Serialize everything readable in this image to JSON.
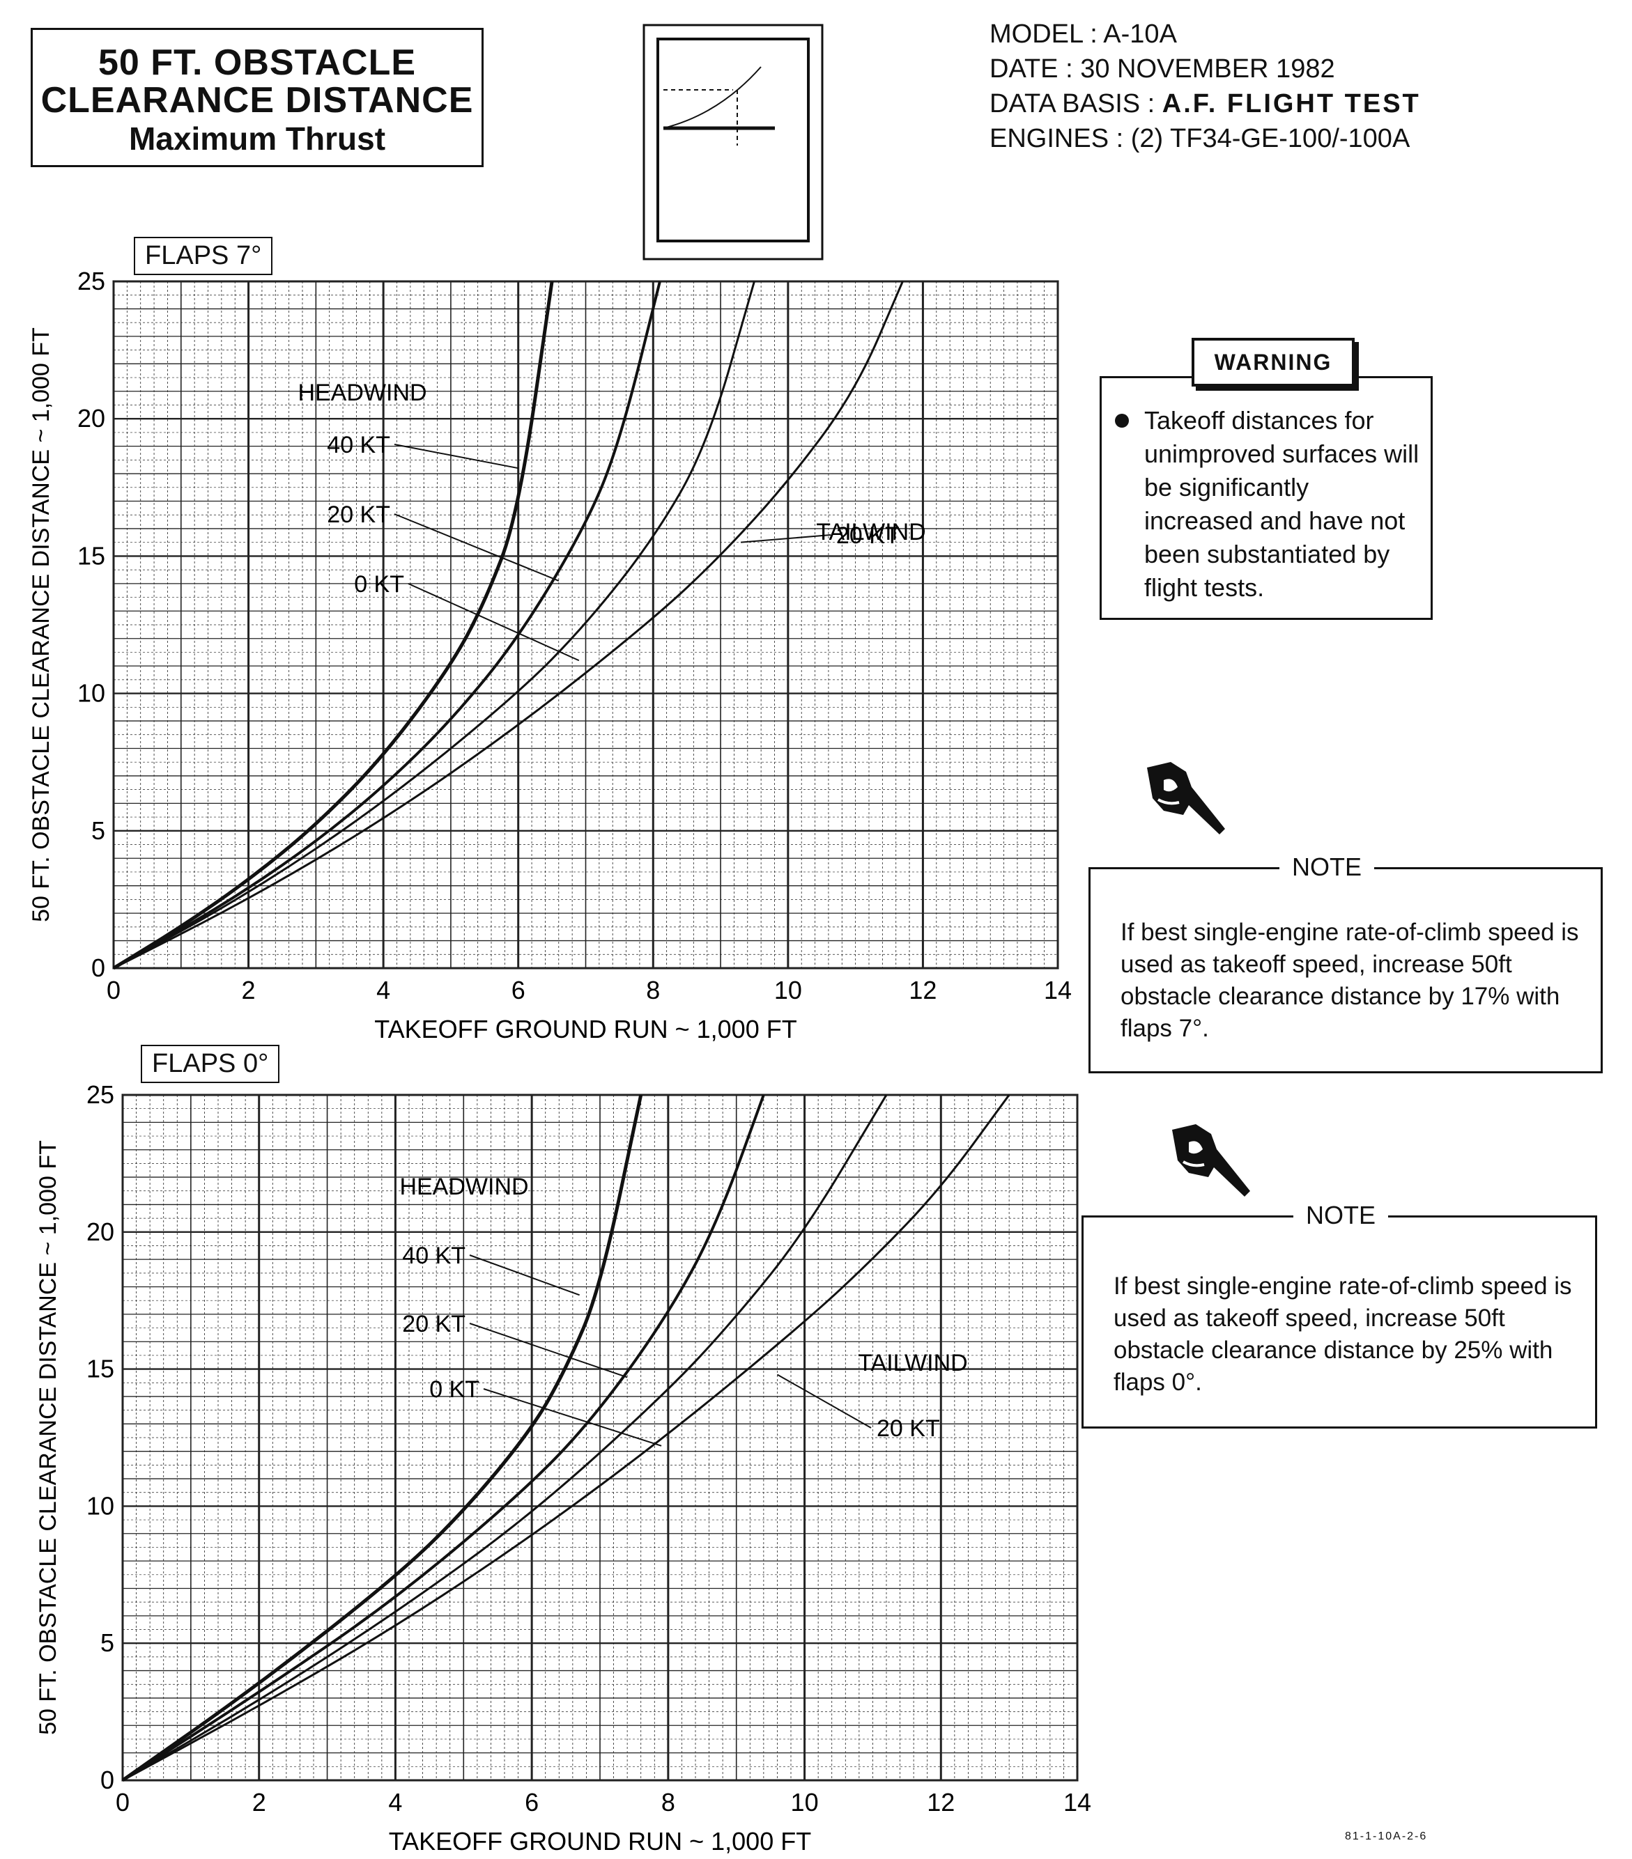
{
  "header": {
    "title_line1": "50 FT. OBSTACLE",
    "title_line2": "CLEARANCE DISTANCE",
    "title_line3": "Maximum Thrust",
    "model": "MODEL : A-10A",
    "date": "DATE : 30 NOVEMBER 1982",
    "data_basis_label": "DATA BASIS : ",
    "data_basis_value": "A.F. FLIGHT TEST",
    "engines": "ENGINES : (2) TF34-GE-100/-100A"
  },
  "warning": {
    "badge": "WARNING",
    "text": "Takeoff distances for unimproved surfaces will be significantly increased and have not been substantiated by flight tests."
  },
  "notes": [
    {
      "label": "NOTE",
      "text": "If best single-engine rate-of-climb speed is used as takeoff speed, increase 50ft obstacle clearance distance by 17% with flaps 7°."
    },
    {
      "label": "NOTE",
      "text": "If best single-engine rate-of-climb speed is used as takeoff speed, increase 50ft obstacle clearance distance by 25% with flaps 0°."
    }
  ],
  "figure_ref": "81-1-10A-2-6",
  "chart_data": [
    {
      "type": "line",
      "title": "FLAPS 7°",
      "xlabel": "TAKEOFF GROUND RUN ~ 1,000 FT",
      "ylabel": "50 FT. OBSTACLE CLEARANCE DISTANCE ~ 1,000 FT",
      "xlim": [
        0,
        14
      ],
      "ylim": [
        0,
        25
      ],
      "xticks": [
        0,
        2,
        4,
        6,
        8,
        10,
        12,
        14
      ],
      "yticks": [
        0,
        5,
        10,
        15,
        20,
        25
      ],
      "grid": true,
      "annotations": {
        "headwind": "HEADWIND",
        "tailwind": "TAILWIND"
      },
      "series": [
        {
          "name": "40 KT",
          "x": [
            0,
            1,
            2,
            3,
            4,
            5,
            5.5,
            6,
            6.5
          ],
          "y": [
            0,
            1.5,
            3.2,
            5.2,
            7.7,
            11.0,
            13.3,
            16.5,
            25
          ]
        },
        {
          "name": "20 KT",
          "x": [
            0,
            1,
            2,
            3,
            4,
            5,
            6,
            7,
            7.5,
            8.1
          ],
          "y": [
            0,
            1.4,
            2.9,
            4.6,
            6.6,
            9.0,
            12.0,
            16.1,
            19.1,
            25
          ]
        },
        {
          "name": "0 KT",
          "x": [
            0,
            2,
            4,
            6,
            7,
            8,
            8.8,
            9.5
          ],
          "y": [
            0,
            2.7,
            6.0,
            10.0,
            12.5,
            15.6,
            19.0,
            25
          ]
        },
        {
          "name": "20 KT",
          "x": [
            0,
            2,
            4,
            6,
            8,
            9,
            10,
            11,
            11.7
          ],
          "y": [
            0,
            2.5,
            5.4,
            8.8,
            12.7,
            15.0,
            17.7,
            21.0,
            25
          ]
        }
      ],
      "series_labels": [
        "40 KT",
        "20 KT",
        "0 KT",
        "20 KT"
      ]
    },
    {
      "type": "line",
      "title": "FLAPS 0°",
      "xlabel": "TAKEOFF GROUND RUN ~ 1,000 FT",
      "ylabel": "50 FT. OBSTACLE CLEARANCE DISTANCE ~ 1,000 FT",
      "xlim": [
        0,
        14
      ],
      "ylim": [
        0,
        25
      ],
      "xticks": [
        0,
        2,
        4,
        6,
        8,
        10,
        12,
        14
      ],
      "yticks": [
        0,
        5,
        10,
        15,
        20,
        25
      ],
      "grid": true,
      "annotations": {
        "headwind": "HEADWIND",
        "tailwind": "TAILWIND"
      },
      "series": [
        {
          "name": "40 KT",
          "x": [
            0,
            2,
            4,
            5,
            6,
            6.5,
            7,
            7.6
          ],
          "y": [
            0,
            3.5,
            7.4,
            9.8,
            12.8,
            15.0,
            17.9,
            25
          ]
        },
        {
          "name": "20 KT",
          "x": [
            0,
            2,
            4,
            6,
            7,
            8,
            8.7,
            9.4
          ],
          "y": [
            0,
            3.2,
            6.6,
            10.8,
            13.5,
            17.0,
            20.2,
            25
          ]
        },
        {
          "name": "0 KT",
          "x": [
            0,
            2,
            4,
            6,
            8,
            9,
            10,
            11.2
          ],
          "y": [
            0,
            2.9,
            6.1,
            9.7,
            14.2,
            16.9,
            20.0,
            25
          ]
        },
        {
          "name": "20 KT",
          "x": [
            0,
            2,
            4,
            6,
            8,
            10,
            11,
            12,
            13
          ],
          "y": [
            0,
            2.7,
            5.6,
            8.9,
            12.6,
            16.7,
            19.0,
            21.6,
            25
          ]
        }
      ],
      "series_labels": [
        "40 KT",
        "20 KT",
        "0 KT",
        "20 KT"
      ]
    }
  ]
}
